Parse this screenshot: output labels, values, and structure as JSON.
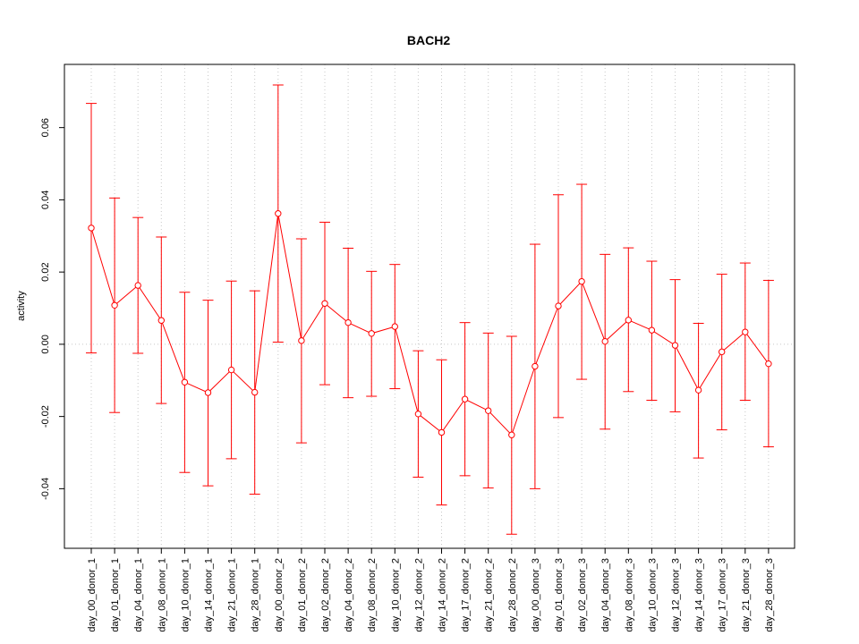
{
  "chart_data": {
    "type": "line",
    "title": "BACH2",
    "xlabel": "",
    "ylabel": "activity",
    "ylim": [
      -0.0565,
      0.0775
    ],
    "yticks": [
      -0.04,
      -0.02,
      0.0,
      0.02,
      0.04,
      0.06
    ],
    "ytick_labels": [
      "-0.04",
      "-0.02",
      "0.00",
      "0.02",
      "0.04",
      "0.06"
    ],
    "grid": true,
    "colors": {
      "series": "#ff0000",
      "grid": "#c8c8c8",
      "axis": "#000000"
    },
    "categories": [
      "day_00_donor_1",
      "day_01_donor_1",
      "day_04_donor_1",
      "day_08_donor_1",
      "day_10_donor_1",
      "day_14_donor_1",
      "day_21_donor_1",
      "day_28_donor_1",
      "day_00_donor_2",
      "day_01_donor_2",
      "day_02_donor_2",
      "day_04_donor_2",
      "day_08_donor_2",
      "day_10_donor_2",
      "day_12_donor_2",
      "day_14_donor_2",
      "day_17_donor_2",
      "day_21_donor_2",
      "day_28_donor_2",
      "day_00_donor_3",
      "day_01_donor_3",
      "day_02_donor_3",
      "day_04_donor_3",
      "day_08_donor_3",
      "day_10_donor_3",
      "day_12_donor_3",
      "day_14_donor_3",
      "day_17_donor_3",
      "day_21_donor_3",
      "day_28_donor_3"
    ],
    "series": [
      {
        "values": [
          0.0322,
          0.0108,
          0.0163,
          0.0066,
          -0.0105,
          -0.0134,
          -0.0071,
          -0.0133,
          0.0362,
          0.001,
          0.0113,
          0.006,
          0.003,
          0.0049,
          -0.0193,
          -0.0244,
          -0.0152,
          -0.0184,
          -0.0251,
          -0.0061,
          0.0106,
          0.0174,
          0.0008,
          0.0067,
          0.0039,
          -0.0003,
          -0.0127,
          -0.0021,
          0.0034,
          -0.0054
        ],
        "lower": [
          -0.0024,
          -0.0189,
          -0.0025,
          -0.0164,
          -0.0355,
          -0.0392,
          -0.0317,
          -0.0415,
          0.0006,
          -0.0273,
          -0.0112,
          -0.0148,
          -0.0144,
          -0.0123,
          -0.0368,
          -0.0445,
          -0.0364,
          -0.0398,
          -0.0526,
          -0.04,
          -0.0203,
          -0.0097,
          -0.0235,
          -0.0131,
          -0.0155,
          -0.0187,
          -0.0315,
          -0.0237,
          -0.0155,
          -0.0284
        ],
        "upper": [
          0.0667,
          0.0405,
          0.0351,
          0.0297,
          0.0144,
          0.0122,
          0.0175,
          0.0148,
          0.0718,
          0.0292,
          0.0338,
          0.0266,
          0.0202,
          0.0221,
          -0.0018,
          -0.0043,
          0.006,
          0.0031,
          0.0022,
          0.0277,
          0.0414,
          0.0443,
          0.0249,
          0.0267,
          0.023,
          0.0179,
          0.0058,
          0.0194,
          0.0225,
          0.0177
        ]
      }
    ]
  }
}
